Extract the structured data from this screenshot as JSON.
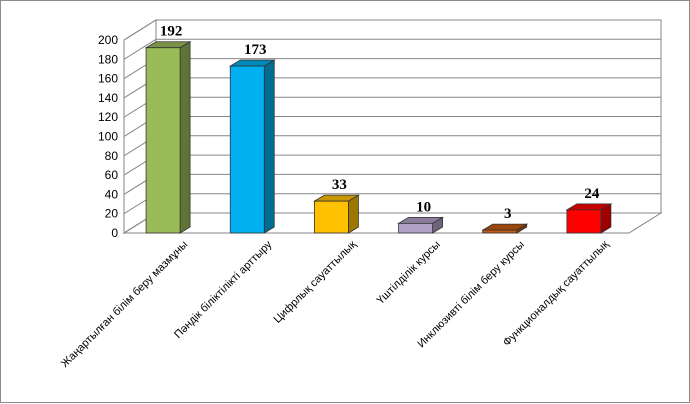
{
  "chart_data": {
    "type": "bar",
    "style": "3d-column",
    "categories": [
      "Жаңартылған білім беру мазмұны",
      "Пәндік біліктілікті арттыру",
      "Цифрлық сауаттылық",
      "Үштілділік курсы",
      "Инклюзивті білім беру курсы",
      "Функционалдық сауаттылық"
    ],
    "values": [
      192,
      173,
      33,
      10,
      3,
      24
    ],
    "colors": [
      "#9bbb59",
      "#00b0f0",
      "#ffc000",
      "#b3a2c7",
      "#c55a11",
      "#ff0000"
    ],
    "title": "",
    "xlabel": "",
    "ylabel": "",
    "ylim": [
      0,
      200
    ],
    "yticks": [
      0,
      20,
      40,
      60,
      80,
      100,
      120,
      140,
      160,
      180,
      200
    ],
    "grid": true,
    "legend": "none",
    "data_labels": true
  }
}
